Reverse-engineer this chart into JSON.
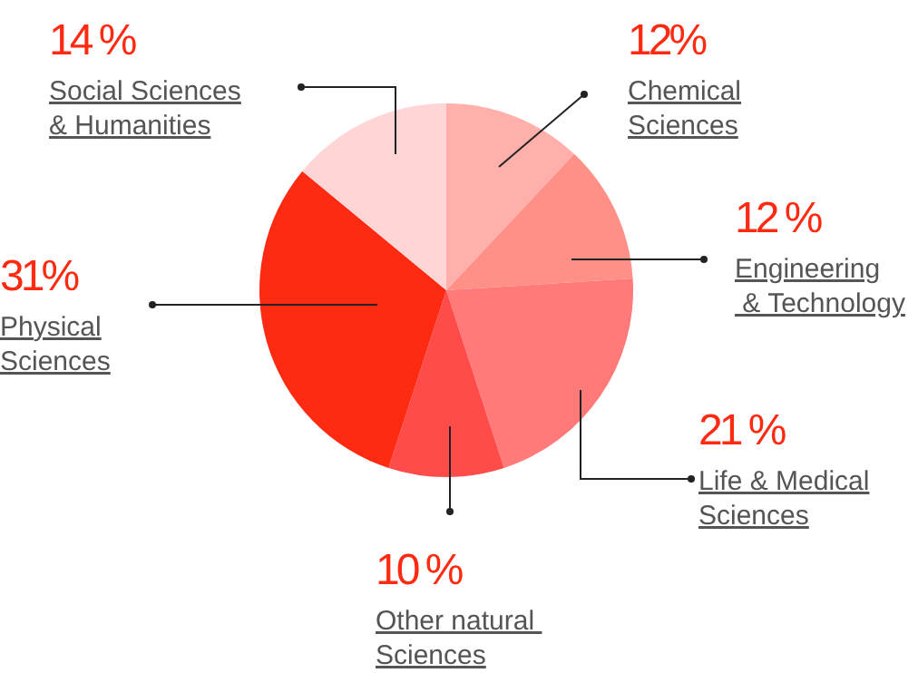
{
  "chart_data": {
    "type": "pie",
    "categories": [
      "Chemical\nSciences",
      "Engineering\n & Technology",
      "Life & Medical\nSciences",
      "Other natural \nSciences",
      "Physical\nSciences",
      "Social Sciences\n& Humanities"
    ],
    "values": [
      12,
      12,
      21,
      10,
      31,
      14
    ],
    "colors": [
      "#ffb0aa",
      "#ff9088",
      "#ff7a78",
      "#ff4c4a",
      "#ff2a12",
      "#ffd5d5"
    ],
    "value_labels": [
      "12%",
      "12 %",
      "21 %",
      "10 %",
      "31%",
      "14 %"
    ]
  }
}
